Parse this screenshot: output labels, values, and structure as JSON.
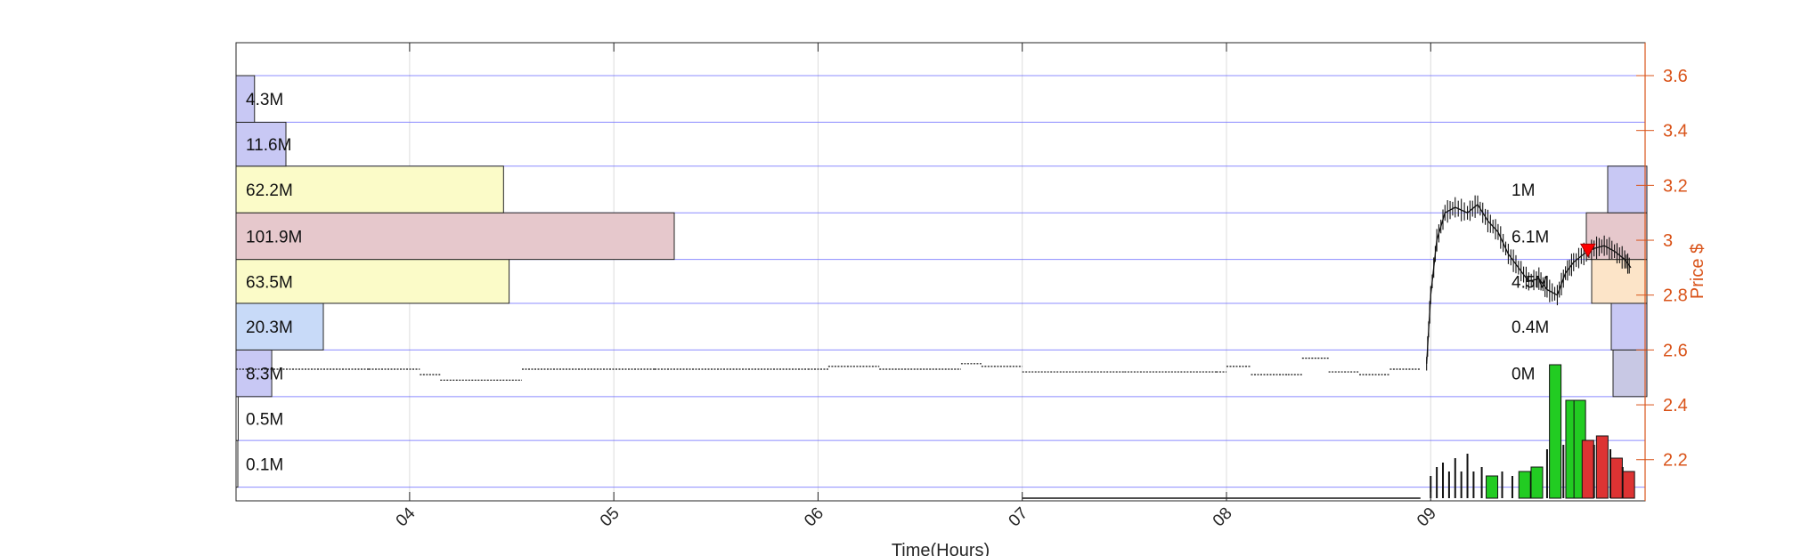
{
  "chart_data": {
    "type": "bar",
    "xlabel": "Time(Hours)",
    "ylabel": "Price $",
    "x_ticks": [
      "04",
      "05",
      "06",
      "07",
      "08",
      "09"
    ],
    "x_tick_hours": [
      4,
      5,
      6,
      7,
      8,
      9
    ],
    "xlim": [
      3.15,
      10.05
    ],
    "ylim": [
      2.05,
      3.72
    ],
    "y_ticks": [
      2.2,
      2.4,
      2.6,
      2.8,
      3.0,
      3.2,
      3.4,
      3.6
    ],
    "y_tick_labels": [
      "2.2",
      "2.4",
      "2.6",
      "2.8",
      "3",
      "3.2",
      "3.4",
      "3.6"
    ],
    "colors": {
      "axis_right": "#d95319",
      "grid": "#6666ff",
      "up": "#22cc22",
      "down": "#dd3333",
      "marker": "#ff0000"
    },
    "price_levels": [
      2.1,
      2.27,
      2.43,
      2.6,
      2.77,
      2.93,
      3.1,
      3.27,
      3.43,
      3.6
    ],
    "volume_profile_left": {
      "bins": [
        {
          "low": 2.1,
          "high": 2.27,
          "volume": 0.1,
          "label": "0.1M",
          "color": "#ffffff"
        },
        {
          "low": 2.27,
          "high": 2.43,
          "volume": 0.5,
          "label": "0.5M",
          "color": "#ffffff"
        },
        {
          "low": 2.43,
          "high": 2.6,
          "volume": 8.3,
          "label": "8.3M",
          "color": "#c8c8f4"
        },
        {
          "low": 2.6,
          "high": 2.77,
          "volume": 20.3,
          "label": "20.3M",
          "color": "#c8daf8"
        },
        {
          "low": 2.77,
          "high": 2.93,
          "volume": 63.5,
          "label": "63.5M",
          "color": "#fbfbc8"
        },
        {
          "low": 2.93,
          "high": 3.1,
          "volume": 101.9,
          "label": "101.9M",
          "color": "#e6c8cc"
        },
        {
          "low": 3.1,
          "high": 3.27,
          "volume": 62.2,
          "label": "62.2M",
          "color": "#fbfbc8"
        },
        {
          "low": 3.27,
          "high": 3.43,
          "volume": 11.6,
          "label": "11.6M",
          "color": "#c8c8f4"
        },
        {
          "low": 3.43,
          "high": 3.6,
          "volume": 4.3,
          "label": "4.3M",
          "color": "#c8c8f4"
        }
      ]
    },
    "volume_profile_right": {
      "bins": [
        {
          "low": 2.43,
          "high": 2.6,
          "volume": 0.0,
          "label": "0M",
          "color": "#c8c8e4"
        },
        {
          "low": 2.6,
          "high": 2.77,
          "volume": 0.4,
          "label": "0.4M",
          "color": "#c8c8f4"
        },
        {
          "low": 2.77,
          "high": 2.93,
          "volume": 4.5,
          "label": "4.5M",
          "color": "#fce4c8"
        },
        {
          "low": 2.93,
          "high": 3.1,
          "volume": 6.1,
          "label": "6.1M",
          "color": "#e6c8cc"
        },
        {
          "low": 3.1,
          "high": 3.27,
          "volume": 1.0,
          "label": "1M",
          "color": "#c8c8f4"
        }
      ]
    },
    "premarket_price": [
      [
        3.15,
        2.53
      ],
      [
        3.8,
        2.53
      ],
      [
        4.05,
        2.51
      ],
      [
        4.15,
        2.49
      ],
      [
        4.55,
        2.53
      ],
      [
        5.2,
        2.53
      ],
      [
        5.95,
        2.53
      ],
      [
        6.05,
        2.54
      ],
      [
        6.3,
        2.53
      ],
      [
        6.7,
        2.55
      ],
      [
        6.8,
        2.54
      ],
      [
        7.0,
        2.52
      ],
      [
        7.5,
        2.52
      ],
      [
        7.95,
        2.52
      ],
      [
        8.0,
        2.54
      ],
      [
        8.12,
        2.51
      ],
      [
        8.3,
        2.51
      ],
      [
        8.37,
        2.57
      ],
      [
        8.5,
        2.52
      ],
      [
        8.65,
        2.51
      ],
      [
        8.8,
        2.53
      ],
      [
        8.95,
        2.53
      ]
    ],
    "session_price": [
      [
        8.98,
        2.55
      ],
      [
        9.0,
        2.8
      ],
      [
        9.03,
        3.0
      ],
      [
        9.07,
        3.1
      ],
      [
        9.12,
        3.12
      ],
      [
        9.18,
        3.1
      ],
      [
        9.23,
        3.13
      ],
      [
        9.28,
        3.07
      ],
      [
        9.33,
        3.03
      ],
      [
        9.38,
        2.95
      ],
      [
        9.43,
        2.9
      ],
      [
        9.48,
        2.85
      ],
      [
        9.53,
        2.86
      ],
      [
        9.57,
        2.82
      ],
      [
        9.62,
        2.8
      ],
      [
        9.66,
        2.88
      ],
      [
        9.7,
        2.92
      ],
      [
        9.75,
        2.95
      ],
      [
        9.8,
        2.97
      ],
      [
        9.85,
        2.98
      ],
      [
        9.9,
        2.96
      ],
      [
        9.95,
        2.93
      ],
      [
        9.98,
        2.9
      ]
    ],
    "current_price": 2.96,
    "volume_bars": [
      {
        "t": 9.0,
        "v": 0.25,
        "c": "k"
      },
      {
        "t": 9.03,
        "v": 0.35,
        "c": "k"
      },
      {
        "t": 9.06,
        "v": 0.4,
        "c": "k"
      },
      {
        "t": 9.09,
        "v": 0.3,
        "c": "k"
      },
      {
        "t": 9.12,
        "v": 0.45,
        "c": "k"
      },
      {
        "t": 9.15,
        "v": 0.3,
        "c": "k"
      },
      {
        "t": 9.18,
        "v": 0.5,
        "c": "k"
      },
      {
        "t": 9.21,
        "v": 0.3,
        "c": "k"
      },
      {
        "t": 9.25,
        "v": 0.35,
        "c": "k"
      },
      {
        "t": 9.3,
        "v": 0.25,
        "c": "up"
      },
      {
        "t": 9.35,
        "v": 0.3,
        "c": "k"
      },
      {
        "t": 9.4,
        "v": 0.25,
        "c": "k"
      },
      {
        "t": 9.46,
        "v": 0.3,
        "c": "up"
      },
      {
        "t": 9.52,
        "v": 0.35,
        "c": "up"
      },
      {
        "t": 9.57,
        "v": 0.55,
        "c": "k"
      },
      {
        "t": 9.61,
        "v": 1.5,
        "c": "up"
      },
      {
        "t": 9.65,
        "v": 0.6,
        "c": "k"
      },
      {
        "t": 9.69,
        "v": 1.1,
        "c": "up"
      },
      {
        "t": 9.73,
        "v": 1.1,
        "c": "up"
      },
      {
        "t": 9.77,
        "v": 0.65,
        "c": "down"
      },
      {
        "t": 9.8,
        "v": 0.6,
        "c": "k"
      },
      {
        "t": 9.84,
        "v": 0.7,
        "c": "down"
      },
      {
        "t": 9.88,
        "v": 0.55,
        "c": "k"
      },
      {
        "t": 9.91,
        "v": 0.45,
        "c": "down"
      },
      {
        "t": 9.94,
        "v": 0.35,
        "c": "k"
      },
      {
        "t": 9.97,
        "v": 0.3,
        "c": "down"
      }
    ],
    "volume_scale_max": 3.0
  }
}
